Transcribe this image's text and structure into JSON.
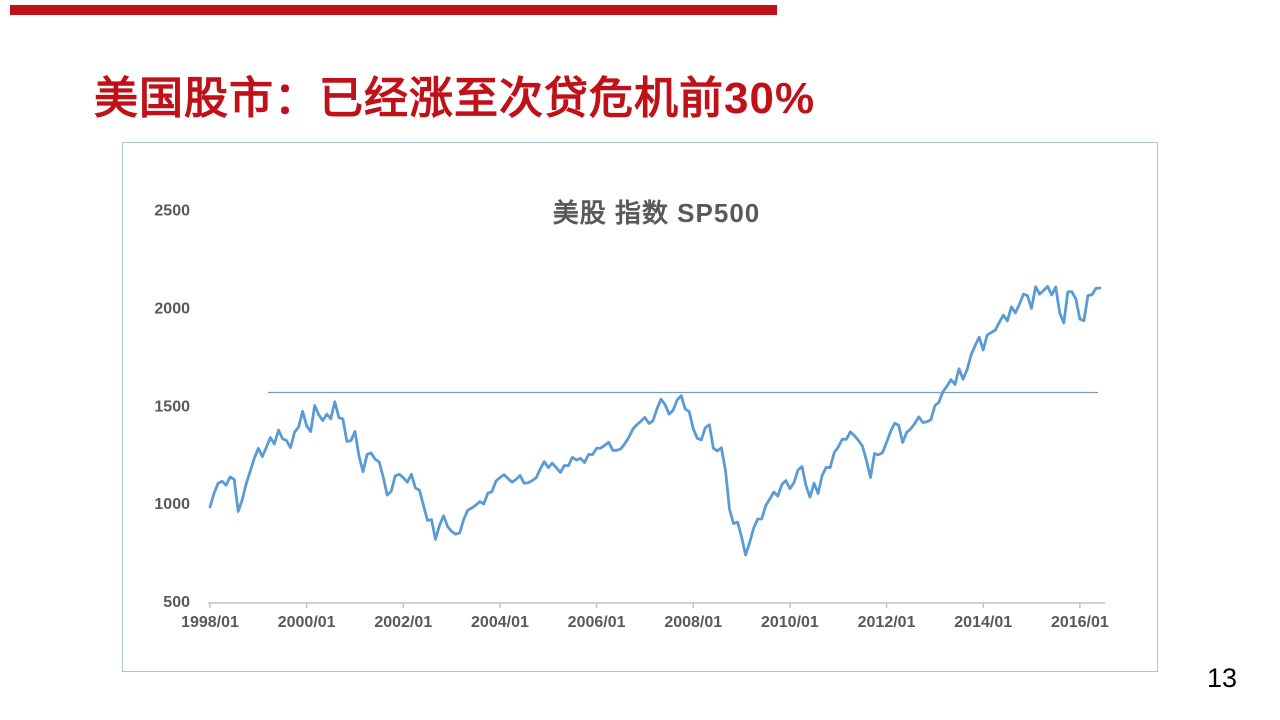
{
  "slide": {
    "title": "美国股市：已经涨至次贷危机前30%",
    "page_number": "13",
    "accent_red": "#c11118"
  },
  "chart": {
    "title": "美股 指数 SP500",
    "y_ticks": [
      2500,
      2000,
      1500,
      1000,
      500
    ],
    "x_ticks": [
      "1998/01",
      "2000/01",
      "2002/01",
      "2004/01",
      "2006/01",
      "2008/01",
      "2010/01",
      "2012/01",
      "2014/01",
      "2016/01"
    ],
    "colors": {
      "series_line": "#5b9bd5",
      "reference_line": "#7d99b3",
      "axis_line": "#c2c2c2",
      "tick_label": "#595959",
      "frame_border": "#a9c4dd",
      "title_red": "#c11118"
    }
  },
  "chart_data": {
    "type": "line",
    "title": "美股 指数 SP500",
    "ylim": [
      500,
      2500
    ],
    "y_tick_step": 500,
    "grid": false,
    "legend": "none",
    "x_tick_labels": [
      "1998/01",
      "2000/01",
      "2002/01",
      "2004/01",
      "2006/01",
      "2008/01",
      "2010/01",
      "2012/01",
      "2014/01",
      "2016/01"
    ],
    "reference_line": {
      "value": 1565
    },
    "series": [
      {
        "name": "SP500",
        "start": "1998/01",
        "end": "2016/06",
        "frequency": "monthly",
        "values": [
          980,
          1049,
          1102,
          1112,
          1091,
          1134,
          1121,
          957,
          1017,
          1099,
          1164,
          1229,
          1280,
          1238,
          1286,
          1335,
          1302,
          1373,
          1329,
          1320,
          1283,
          1363,
          1389,
          1469,
          1394,
          1366,
          1499,
          1452,
          1421,
          1455,
          1431,
          1518,
          1437,
          1429,
          1315,
          1320,
          1366,
          1240,
          1160,
          1249,
          1256,
          1224,
          1211,
          1134,
          1041,
          1060,
          1139,
          1148,
          1130,
          1107,
          1147,
          1077,
          1067,
          990,
          912,
          916,
          815,
          886,
          936,
          880,
          856,
          841,
          848,
          917,
          964,
          975,
          990,
          1008,
          996,
          1051,
          1058,
          1112,
          1131,
          1145,
          1126,
          1107,
          1121,
          1141,
          1102,
          1104,
          1115,
          1130,
          1174,
          1212,
          1181,
          1204,
          1181,
          1157,
          1192,
          1191,
          1234,
          1220,
          1229,
          1207,
          1249,
          1248,
          1280,
          1281,
          1295,
          1311,
          1270,
          1270,
          1277,
          1304,
          1336,
          1378,
          1401,
          1418,
          1438,
          1407,
          1421,
          1482,
          1531,
          1503,
          1455,
          1474,
          1527,
          1549,
          1481,
          1468,
          1379,
          1331,
          1323,
          1386,
          1400,
          1280,
          1267,
          1283,
          1166,
          969,
          896,
          903,
          826,
          735,
          798,
          873,
          919,
          919,
          987,
          1021,
          1057,
          1036,
          1096,
          1115,
          1074,
          1104,
          1169,
          1187,
          1089,
          1031,
          1102,
          1049,
          1141,
          1183,
          1181,
          1258,
          1286,
          1327,
          1326,
          1364,
          1345,
          1321,
          1292,
          1219,
          1131,
          1253,
          1247,
          1258,
          1312,
          1366,
          1408,
          1398,
          1310,
          1362,
          1379,
          1407,
          1441,
          1412,
          1416,
          1426,
          1498,
          1515,
          1569,
          1598,
          1631,
          1606,
          1686,
          1633,
          1682,
          1757,
          1806,
          1848,
          1783,
          1859,
          1872,
          1884,
          1924,
          1960,
          1931,
          2003,
          1972,
          2018,
          2068,
          2059,
          1995,
          2105,
          2068,
          2086,
          2107,
          2063,
          2104,
          1972,
          1920,
          2079,
          2080,
          2044,
          1940,
          1932,
          2060,
          2065,
          2097,
          2099
        ]
      }
    ]
  }
}
